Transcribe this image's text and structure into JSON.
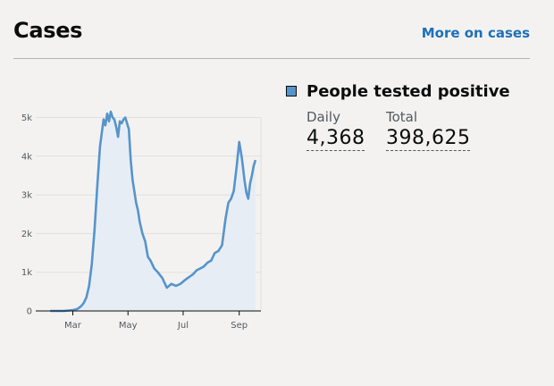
{
  "header": {
    "title": "Cases",
    "more_link": "More on cases"
  },
  "legend": {
    "label": "People tested positive",
    "color": "#5694ca"
  },
  "stats": {
    "daily_label": "Daily",
    "daily_value": "4,368",
    "total_label": "Total",
    "total_value": "398,625"
  },
  "chart_data": {
    "type": "area",
    "title": "",
    "xlabel": "",
    "ylabel": "",
    "x_ticks": [
      "Mar",
      "May",
      "Jul",
      "Sep"
    ],
    "y_ticks": [
      "0",
      "1k",
      "2k",
      "3k",
      "4k",
      "5k"
    ],
    "ylim": [
      0,
      5500
    ],
    "grid": true,
    "colors": {
      "line": "#5694ca",
      "fill": "#e7edf5"
    },
    "series": [
      {
        "x": [
          "2020-02-05",
          "2020-02-20",
          "2020-03-01",
          "2020-03-06",
          "2020-03-10",
          "2020-03-13",
          "2020-03-16",
          "2020-03-19",
          "2020-03-22",
          "2020-03-25",
          "2020-03-28",
          "2020-03-31",
          "2020-04-02",
          "2020-04-04",
          "2020-04-06",
          "2020-04-08",
          "2020-04-10",
          "2020-04-12",
          "2020-04-14",
          "2020-04-16",
          "2020-04-18",
          "2020-04-20",
          "2020-04-22",
          "2020-04-24",
          "2020-04-26",
          "2020-04-28",
          "2020-04-30",
          "2020-05-02",
          "2020-05-04",
          "2020-05-06",
          "2020-05-08",
          "2020-05-10",
          "2020-05-12",
          "2020-05-14",
          "2020-05-17",
          "2020-05-20",
          "2020-05-23",
          "2020-05-26",
          "2020-05-30",
          "2020-06-03",
          "2020-06-08",
          "2020-06-13",
          "2020-06-18",
          "2020-06-23",
          "2020-06-28",
          "2020-07-03",
          "2020-07-06",
          "2020-07-09",
          "2020-07-12",
          "2020-07-16",
          "2020-07-20",
          "2020-07-24",
          "2020-07-28",
          "2020-08-01",
          "2020-08-05",
          "2020-08-09",
          "2020-08-13",
          "2020-08-17",
          "2020-08-20",
          "2020-08-23",
          "2020-08-26",
          "2020-08-29",
          "2020-09-01",
          "2020-09-04",
          "2020-09-07",
          "2020-09-09",
          "2020-09-11",
          "2020-09-13",
          "2020-09-15",
          "2020-09-17",
          "2020-09-19"
        ],
        "y": [
          0,
          0,
          20,
          50,
          120,
          200,
          350,
          650,
          1200,
          2100,
          3200,
          4250,
          4600,
          4950,
          4800,
          5100,
          4900,
          5150,
          5000,
          4950,
          4750,
          4500,
          4900,
          4850,
          4950,
          5000,
          4850,
          4700,
          3900,
          3400,
          3100,
          2800,
          2600,
          2300,
          2000,
          1800,
          1400,
          1300,
          1100,
          1000,
          850,
          600,
          700,
          650,
          700,
          800,
          850,
          900,
          950,
          1050,
          1100,
          1150,
          1250,
          1300,
          1500,
          1550,
          1700,
          2400,
          2800,
          2900,
          3100,
          3700,
          4368,
          3950,
          3350,
          3050,
          2900,
          3300,
          3500,
          3750,
          3900
        ]
      }
    ]
  }
}
